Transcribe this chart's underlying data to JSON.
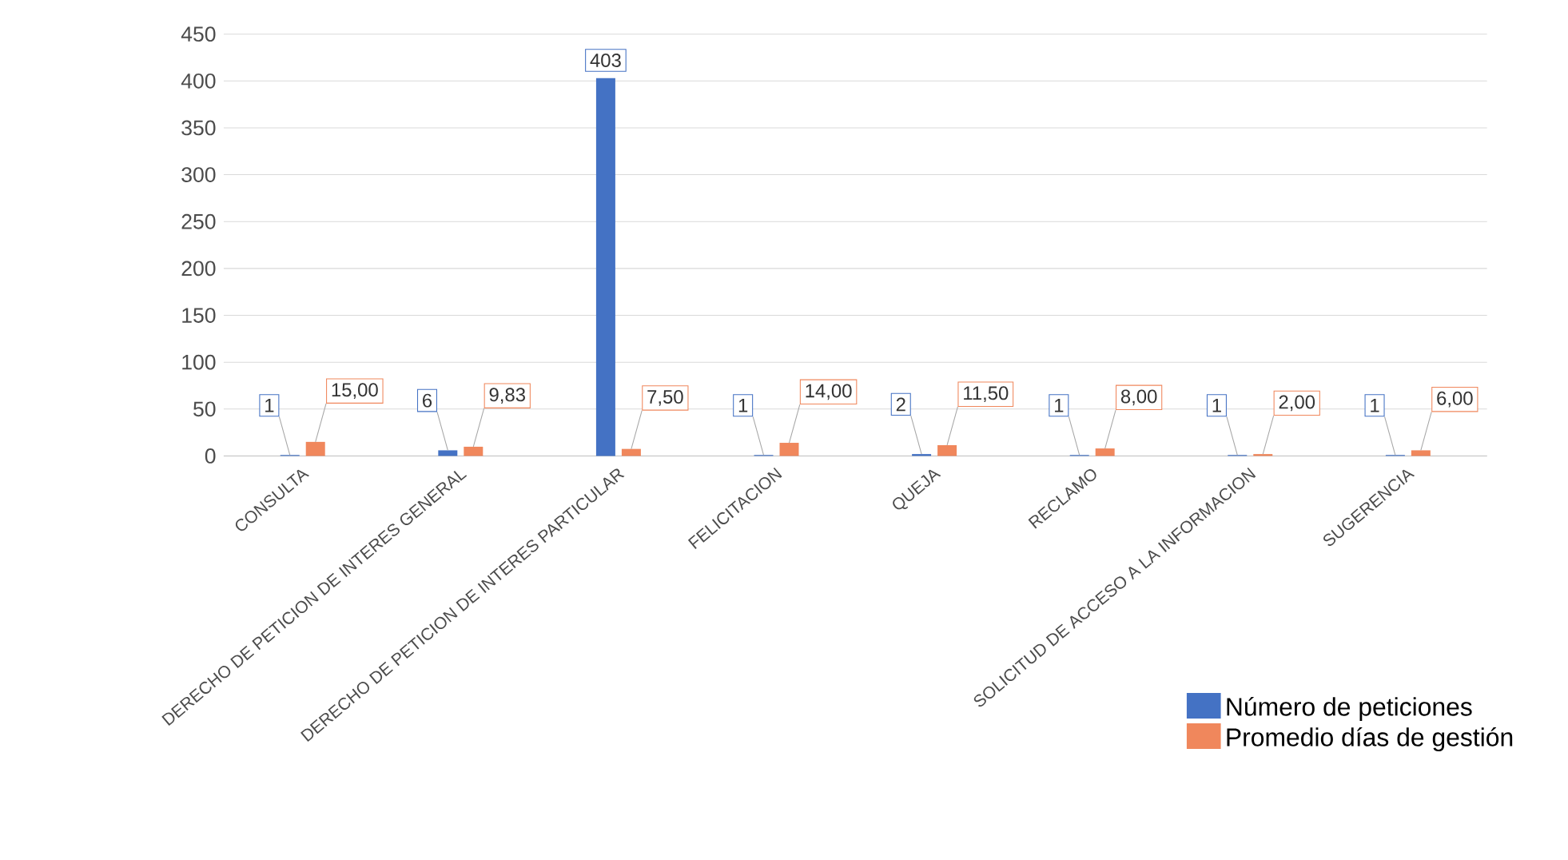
{
  "chart_data": {
    "type": "bar",
    "categories": [
      "CONSULTA",
      "DERECHO DE PETICION DE INTERES GENERAL",
      "DERECHO DE PETICION DE INTERES PARTICULAR",
      "FELICITACION",
      "QUEJA",
      "RECLAMO",
      "SOLICITUD DE ACCESO A LA INFORMACION",
      "SUGERENCIA"
    ],
    "series": [
      {
        "name": "Número de peticiones",
        "color": "#4472c4",
        "values": [
          1,
          6,
          403,
          1,
          2,
          1,
          1,
          1
        ],
        "value_labels": [
          "1",
          "6",
          "403",
          "1",
          "2",
          "1",
          "1",
          "1"
        ]
      },
      {
        "name": "Promedio días de gestión",
        "color": "#f0875c",
        "values": [
          15,
          9.83,
          7.5,
          14,
          11.5,
          8,
          2,
          6
        ],
        "value_labels": [
          "15,00",
          "9,83",
          "7,50",
          "14,00",
          "11,50",
          "8,00",
          "2,00",
          "6,00"
        ]
      }
    ],
    "ylim": [
      0,
      450
    ],
    "yticks": [
      0,
      50,
      100,
      150,
      200,
      250,
      300,
      350,
      400,
      450
    ],
    "grid": "y",
    "legend": "bottom right"
  }
}
